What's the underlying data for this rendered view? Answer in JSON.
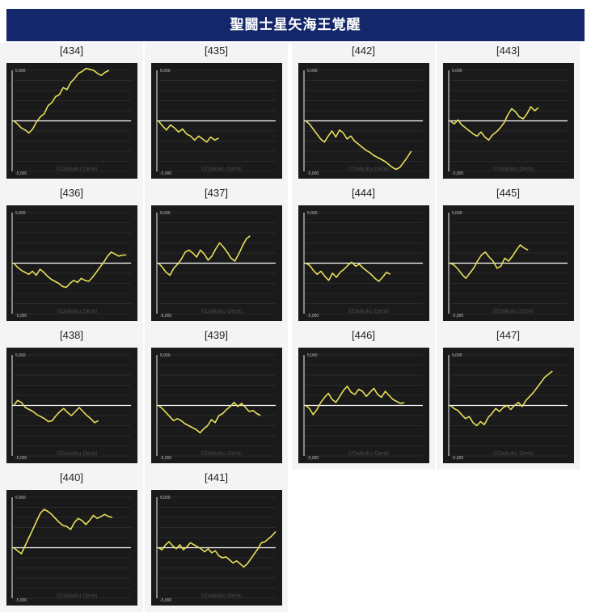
{
  "title": "聖闘士星矢海王覚醒",
  "axis": {
    "ymax_label": "5,000",
    "ymin_label": "-5,000",
    "ymax": 5000,
    "ymin": -5000
  },
  "watermark": "©Daikoku Denki",
  "colors": {
    "header_bg": "#13276a",
    "graph_bg": "#1a1a1a",
    "line": "#e8e05a",
    "zero_line": "#ffffff",
    "grid": "#3a3a3a"
  },
  "chart_data": [
    {
      "type": "line",
      "title": "[434]",
      "ylim": [
        -5000,
        5000
      ],
      "x": [
        0,
        1,
        2,
        3,
        4,
        5,
        6,
        7,
        8,
        9,
        10,
        11,
        12,
        13,
        14,
        15,
        16,
        17,
        18,
        19,
        20,
        21,
        22,
        23,
        24,
        25
      ],
      "values": [
        0,
        -300,
        -700,
        -900,
        -1200,
        -800,
        -100,
        400,
        700,
        1500,
        1800,
        2400,
        2600,
        3300,
        3100,
        3800,
        4200,
        4700,
        4900,
        5200,
        5100,
        5000,
        4700,
        4500,
        4800,
        5000
      ]
    },
    {
      "type": "line",
      "title": "[435]",
      "ylim": [
        -5000,
        5000
      ],
      "x": [
        0,
        1,
        2,
        3,
        4,
        5,
        6,
        7,
        8,
        9,
        10,
        11,
        12,
        13,
        14,
        15
      ],
      "values": [
        0,
        -500,
        -900,
        -400,
        -700,
        -1100,
        -800,
        -1300,
        -1500,
        -1900,
        -1500,
        -1800,
        -2100,
        -1600,
        -1900,
        -1700
      ]
    },
    {
      "type": "line",
      "title": "[442]",
      "ylim": [
        -5000,
        5000
      ],
      "x": [
        0,
        1,
        2,
        3,
        4,
        5,
        6,
        7,
        8,
        9,
        10,
        11,
        12,
        13,
        14,
        15,
        16,
        17,
        18,
        19,
        20,
        21,
        22,
        23,
        24,
        25,
        26,
        27,
        28
      ],
      "values": [
        0,
        -300,
        -800,
        -1300,
        -1800,
        -2100,
        -1500,
        -1000,
        -1600,
        -900,
        -1200,
        -1800,
        -1500,
        -2000,
        -2300,
        -2600,
        -2900,
        -3100,
        -3400,
        -3600,
        -3800,
        -4000,
        -4300,
        -4600,
        -4800,
        -4600,
        -4100,
        -3600,
        -3000
      ]
    },
    {
      "type": "line",
      "title": "[443]",
      "ylim": [
        -5000,
        5000
      ],
      "x": [
        0,
        1,
        2,
        3,
        4,
        5,
        6,
        7,
        8,
        9,
        10,
        11,
        12,
        13,
        14,
        15,
        16,
        17,
        18,
        19,
        20,
        21,
        22,
        23
      ],
      "values": [
        0,
        -300,
        100,
        -400,
        -700,
        -1000,
        -1300,
        -1500,
        -1100,
        -1600,
        -1900,
        -1400,
        -1100,
        -700,
        -200,
        600,
        1200,
        900,
        400,
        200,
        700,
        1400,
        1000,
        1300
      ]
    },
    {
      "type": "line",
      "title": "[436]",
      "ylim": [
        -5000,
        5000
      ],
      "x": [
        0,
        1,
        2,
        3,
        4,
        5,
        6,
        7,
        8,
        9,
        10,
        11,
        12,
        13,
        14,
        15,
        16,
        17,
        18,
        19,
        20,
        21,
        22,
        23,
        24,
        25,
        26,
        27,
        28,
        29,
        30
      ],
      "values": [
        0,
        -400,
        -700,
        -900,
        -1100,
        -800,
        -1200,
        -600,
        -900,
        -1300,
        -1600,
        -1800,
        -2000,
        -2300,
        -2400,
        -2000,
        -1700,
        -1900,
        -1500,
        -1700,
        -1800,
        -1400,
        -900,
        -400,
        100,
        700,
        1100,
        900,
        700,
        800,
        800
      ]
    },
    {
      "type": "line",
      "title": "[437]",
      "ylim": [
        -5000,
        5000
      ],
      "x": [
        0,
        1,
        2,
        3,
        4,
        5,
        6,
        7,
        8,
        9,
        10,
        11,
        12,
        13,
        14,
        15,
        16,
        17,
        18,
        19,
        20,
        21,
        22,
        23,
        24
      ],
      "values": [
        0,
        -400,
        -900,
        -1200,
        -500,
        -100,
        400,
        1100,
        1300,
        1000,
        600,
        1300,
        900,
        300,
        700,
        1400,
        2000,
        1600,
        1100,
        500,
        200,
        900,
        1700,
        2400,
        2700
      ]
    },
    {
      "type": "line",
      "title": "[444]",
      "ylim": [
        -5000,
        5000
      ],
      "x": [
        0,
        1,
        2,
        3,
        4,
        5,
        6,
        7,
        8,
        9,
        10,
        11,
        12,
        13,
        14,
        15,
        16,
        17,
        18,
        19,
        20,
        21,
        22
      ],
      "values": [
        0,
        -200,
        -700,
        -1100,
        -800,
        -1300,
        -1700,
        -1000,
        -1400,
        -900,
        -600,
        -200,
        100,
        -300,
        -100,
        -500,
        -800,
        -1100,
        -1500,
        -1800,
        -1400,
        -900,
        -1100
      ]
    },
    {
      "type": "line",
      "title": "[445]",
      "ylim": [
        -5000,
        5000
      ],
      "x": [
        0,
        1,
        2,
        3,
        4,
        5,
        6,
        7,
        8,
        9,
        10,
        11,
        12,
        13,
        14,
        15,
        16,
        17,
        18,
        19,
        20
      ],
      "values": [
        0,
        -200,
        -600,
        -1100,
        -1500,
        -1000,
        -500,
        200,
        800,
        1100,
        600,
        200,
        -500,
        -300,
        500,
        200,
        700,
        1300,
        1800,
        1500,
        1300
      ]
    },
    {
      "type": "line",
      "title": "[438]",
      "ylim": [
        -5000,
        5000
      ],
      "x": [
        0,
        1,
        2,
        3,
        4,
        5,
        6,
        7,
        8,
        9,
        10,
        11,
        12,
        13,
        14,
        15,
        16,
        17,
        18,
        19,
        20,
        21,
        22
      ],
      "values": [
        0,
        500,
        300,
        -200,
        -400,
        -600,
        -900,
        -1100,
        -1300,
        -1600,
        -1500,
        -1000,
        -600,
        -300,
        -700,
        -1000,
        -600,
        -200,
        -600,
        -1000,
        -1300,
        -1700,
        -1500
      ]
    },
    {
      "type": "line",
      "title": "[439]",
      "ylim": [
        -5000,
        5000
      ],
      "x": [
        0,
        1,
        2,
        3,
        4,
        5,
        6,
        7,
        8,
        9,
        10,
        11,
        12,
        13,
        14,
        15,
        16,
        17,
        18,
        19,
        20,
        21,
        22,
        23,
        24,
        25,
        26,
        27
      ],
      "values": [
        0,
        -300,
        -700,
        -1100,
        -1500,
        -1300,
        -1500,
        -1800,
        -2000,
        -2200,
        -2400,
        -2700,
        -2300,
        -2000,
        -1400,
        -1700,
        -1000,
        -800,
        -400,
        -100,
        300,
        -100,
        200,
        -200,
        -600,
        -500,
        -800,
        -1000
      ]
    },
    {
      "type": "line",
      "title": "[446]",
      "ylim": [
        -5000,
        5000
      ],
      "x": [
        0,
        1,
        2,
        3,
        4,
        5,
        6,
        7,
        8,
        9,
        10,
        11,
        12,
        13,
        14,
        15,
        16,
        17,
        18,
        19,
        20,
        21,
        22,
        23,
        24,
        25,
        26
      ],
      "values": [
        0,
        -300,
        -900,
        -400,
        300,
        800,
        1200,
        600,
        300,
        900,
        1500,
        1900,
        1300,
        1100,
        1600,
        1400,
        900,
        1300,
        1700,
        1100,
        800,
        1400,
        1000,
        600,
        400,
        200,
        300
      ]
    },
    {
      "type": "line",
      "title": "[447]",
      "ylim": [
        -5000,
        5000
      ],
      "x": [
        0,
        1,
        2,
        3,
        4,
        5,
        6,
        7,
        8,
        9,
        10,
        11,
        12,
        13,
        14,
        15,
        16,
        17,
        18,
        19,
        20,
        21,
        22,
        23,
        24,
        25,
        26,
        27
      ],
      "values": [
        0,
        -300,
        -500,
        -900,
        -1300,
        -1100,
        -1700,
        -2000,
        -1600,
        -1900,
        -1200,
        -800,
        -300,
        -600,
        -200,
        0,
        -400,
        0,
        300,
        -100,
        500,
        900,
        1300,
        1800,
        2300,
        2800,
        3100,
        3400
      ]
    },
    {
      "type": "line",
      "title": "[440]",
      "ylim": [
        -5000,
        5000
      ],
      "x": [
        0,
        1,
        2,
        3,
        4,
        5,
        6,
        7,
        8,
        9,
        10,
        11,
        12,
        13,
        14,
        15,
        16,
        17,
        18,
        19,
        20,
        21,
        22,
        23,
        24,
        25,
        26
      ],
      "values": [
        0,
        -300,
        -600,
        200,
        1000,
        1800,
        2600,
        3400,
        3800,
        3600,
        3300,
        2900,
        2500,
        2200,
        2100,
        1800,
        2500,
        2900,
        2700,
        2300,
        2700,
        3200,
        2900,
        3100,
        3300,
        3100,
        3000
      ]
    },
    {
      "type": "line",
      "title": "[441]",
      "ylim": [
        -5000,
        5000
      ],
      "x": [
        0,
        1,
        2,
        3,
        4,
        5,
        6,
        7,
        8,
        9,
        10,
        11,
        12,
        13,
        14,
        15,
        16,
        17,
        18,
        19,
        20,
        21,
        22,
        23,
        24,
        25,
        26,
        27,
        28,
        29,
        30,
        31,
        32,
        33
      ],
      "values": [
        0,
        -200,
        300,
        600,
        200,
        -100,
        300,
        -200,
        100,
        500,
        300,
        100,
        -100,
        -400,
        -100,
        -500,
        -300,
        -800,
        -1000,
        -900,
        -1200,
        -1500,
        -1300,
        -1600,
        -1900,
        -1600,
        -1100,
        -600,
        -100,
        500,
        600,
        900,
        1200,
        1600
      ]
    }
  ]
}
